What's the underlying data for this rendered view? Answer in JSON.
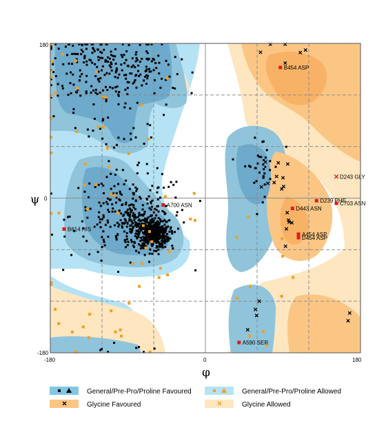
{
  "chart_data": {
    "type": "scatter",
    "xlabel": "φ",
    "ylabel": "ψ",
    "xlim": [
      -180,
      180
    ],
    "ylim": [
      -180,
      180
    ],
    "xticks": [
      "-180",
      "0",
      "180"
    ],
    "yticks": [
      "180",
      "0",
      "-180"
    ],
    "gridlines": [
      -120,
      -60,
      60,
      120
    ],
    "colors": {
      "general_allowed": "#b5e3f5",
      "general_favoured": "#8fc4db",
      "general_core": "#6eaacb",
      "glycine_allowed": "#fde6c0",
      "glycine_favoured": "#fbc684",
      "glycine_core": "#f8b266",
      "point_general": "#000000",
      "point_glycine": "#f0a020",
      "point_outlier": "#e31a1c"
    },
    "outliers": [
      {
        "label": "B454 ASP",
        "phi": 87,
        "psi": 152,
        "marker": "square"
      },
      {
        "label": "D243 GLY",
        "phi": 152,
        "psi": 25,
        "marker": "x"
      },
      {
        "label": "A700 ASN",
        "phi": -49,
        "psi": -8,
        "marker": "square"
      },
      {
        "label": "D239 PHE",
        "phi": 129,
        "psi": -3,
        "marker": "square"
      },
      {
        "label": "C703 ASN",
        "phi": 152,
        "psi": -6,
        "marker": "square"
      },
      {
        "label": "D443 ASN",
        "phi": 101,
        "psi": -12,
        "marker": "square"
      },
      {
        "label": "B614 HIS",
        "phi": -164,
        "psi": -36,
        "marker": "square"
      },
      {
        "label": "A454 ASP",
        "phi": 108,
        "psi": -42,
        "marker": "square"
      },
      {
        "label": "D454 ASP",
        "phi": 108,
        "psi": -46,
        "marker": "square"
      },
      {
        "label": "A590 SER",
        "phi": 39,
        "psi": -168,
        "marker": "square"
      }
    ],
    "clusters": [
      {
        "class": "general",
        "cx": -118,
        "cy": 150,
        "sx": 34,
        "sy": 22,
        "n": 190
      },
      {
        "class": "general",
        "cx": -65,
        "cy": 150,
        "sx": 18,
        "sy": 14,
        "n": 40
      },
      {
        "class": "general",
        "cx": -95,
        "cy": 90,
        "sx": 28,
        "sy": 22,
        "n": 35
      },
      {
        "class": "general",
        "cx": -88,
        "cy": -20,
        "sx": 34,
        "sy": 25,
        "n": 230
      },
      {
        "class": "general",
        "cx": -60,
        "cy": -42,
        "sx": 9,
        "sy": 8,
        "n": 360
      },
      {
        "class": "general",
        "cx": -75,
        "cy": -30,
        "sx": 12,
        "sy": 10,
        "n": 120
      },
      {
        "class": "general",
        "cx": 65,
        "cy": 38,
        "sx": 11,
        "sy": 18,
        "n": 35
      },
      {
        "class": "general",
        "cx": -150,
        "cy": 170,
        "sx": 15,
        "sy": 8,
        "n": 12
      },
      {
        "class": "general",
        "cx": -100,
        "cy": -175,
        "sx": 25,
        "sy": 4,
        "n": 8
      },
      {
        "class": "glycine",
        "cx": 85,
        "cy": 20,
        "sx": 9,
        "sy": 14,
        "n": 10
      },
      {
        "class": "glycine",
        "cx": 100,
        "cy": -35,
        "sx": 8,
        "sy": 15,
        "n": 6
      },
      {
        "class": "glycine",
        "cx": 105,
        "cy": 170,
        "sx": 25,
        "sy": 8,
        "n": 6
      },
      {
        "class": "glycine",
        "cx": 60,
        "cy": -125,
        "sx": 8,
        "sy": 10,
        "n": 4
      },
      {
        "class": "glycine",
        "cx": 165,
        "cy": -140,
        "sx": 5,
        "sy": 5,
        "n": 2
      },
      {
        "class": "glycine_yellow",
        "cx": -120,
        "cy": 40,
        "sx": 60,
        "sy": 80,
        "n": 45
      },
      {
        "class": "glycine_yellow",
        "cx": 60,
        "cy": -110,
        "sx": 25,
        "sy": 40,
        "n": 10
      },
      {
        "class": "glycine_yellow",
        "cx": -60,
        "cy": -70,
        "sx": 20,
        "sy": 20,
        "n": 10
      },
      {
        "class": "glycine_yellow",
        "cx": -100,
        "cy": -160,
        "sx": 40,
        "sy": 12,
        "n": 10
      }
    ]
  },
  "legend": [
    {
      "key": "general_favoured",
      "label": "General/Pre-Pro/Proline Favoured"
    },
    {
      "key": "general_allowed",
      "label": "General/Pre-Pro/Proline Allowed"
    },
    {
      "key": "glycine_favoured",
      "label": "Glycine Favoured"
    },
    {
      "key": "glycine_allowed",
      "label": "Glycine Allowed"
    }
  ]
}
